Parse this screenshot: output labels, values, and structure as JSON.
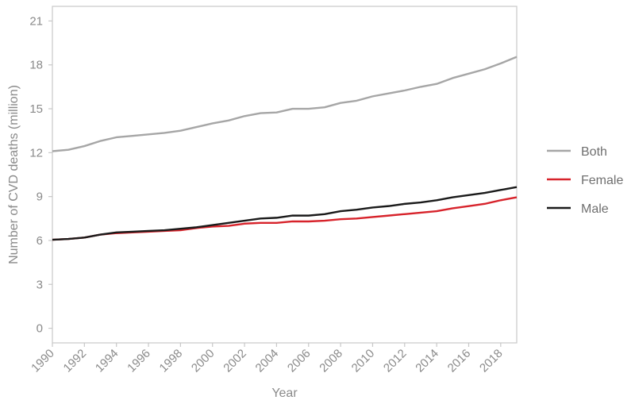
{
  "chart_data": {
    "type": "line",
    "title": "",
    "xlabel": "Year",
    "ylabel": "Number of CVD deaths (million)",
    "xlim": [
      1990,
      2019
    ],
    "ylim": [
      -1,
      22
    ],
    "x_ticks": [
      "1990",
      "1992",
      "1994",
      "1996",
      "1998",
      "2000",
      "2002",
      "2004",
      "2006",
      "2008",
      "2010",
      "2012",
      "2014",
      "2016",
      "2018"
    ],
    "y_ticks": [
      "0",
      "3",
      "6",
      "9",
      "12",
      "15",
      "18",
      "21"
    ],
    "x": [
      1990,
      1991,
      1992,
      1993,
      1994,
      1995,
      1996,
      1997,
      1998,
      1999,
      2000,
      2001,
      2002,
      2003,
      2004,
      2005,
      2006,
      2007,
      2008,
      2009,
      2010,
      2011,
      2012,
      2013,
      2014,
      2015,
      2016,
      2017,
      2018,
      2019
    ],
    "grid": false,
    "legend_position": "right",
    "series": [
      {
        "name": "Both",
        "color": "#a6a6a6",
        "values": [
          12.1,
          12.2,
          12.45,
          12.8,
          13.05,
          13.15,
          13.25,
          13.35,
          13.5,
          13.75,
          14.0,
          14.2,
          14.5,
          14.7,
          14.75,
          15.0,
          15.0,
          15.1,
          15.4,
          15.55,
          15.85,
          16.05,
          16.25,
          16.5,
          16.7,
          17.1,
          17.4,
          17.7,
          18.1,
          18.55
        ]
      },
      {
        "name": "Female",
        "color": "#d7232b",
        "values": [
          6.05,
          6.1,
          6.2,
          6.4,
          6.5,
          6.55,
          6.6,
          6.65,
          6.7,
          6.85,
          6.95,
          7.0,
          7.15,
          7.2,
          7.2,
          7.3,
          7.3,
          7.35,
          7.45,
          7.5,
          7.6,
          7.7,
          7.8,
          7.9,
          8.0,
          8.2,
          8.35,
          8.5,
          8.75,
          8.95
        ]
      },
      {
        "name": "Male",
        "color": "#1a1a1a",
        "values": [
          6.05,
          6.1,
          6.2,
          6.4,
          6.55,
          6.6,
          6.65,
          6.7,
          6.8,
          6.9,
          7.05,
          7.2,
          7.35,
          7.5,
          7.55,
          7.7,
          7.7,
          7.8,
          8.0,
          8.1,
          8.25,
          8.35,
          8.5,
          8.6,
          8.75,
          8.95,
          9.1,
          9.25,
          9.45,
          9.65
        ]
      }
    ]
  }
}
